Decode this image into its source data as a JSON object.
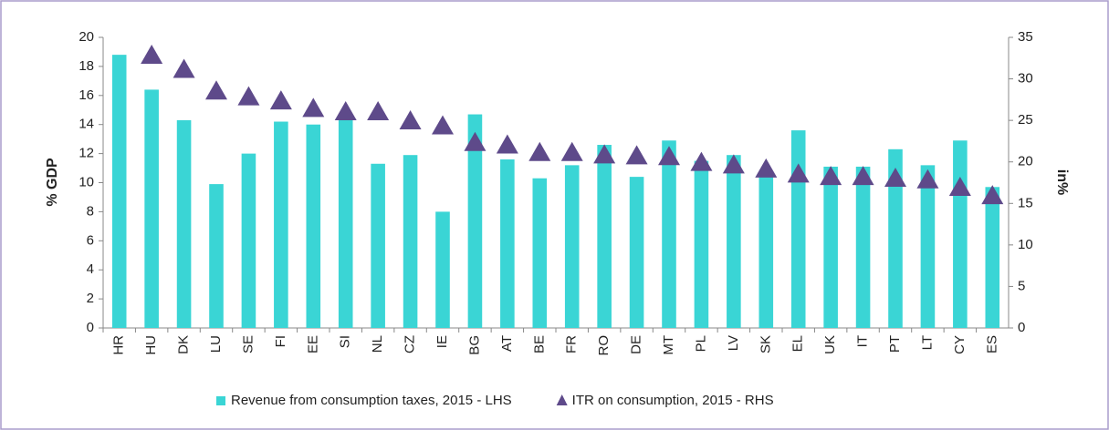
{
  "chart_data": {
    "type": "bar",
    "categories": [
      "HR",
      "HU",
      "DK",
      "LU",
      "SE",
      "FI",
      "EE",
      "SI",
      "NL",
      "CZ",
      "IE",
      "BG",
      "AT",
      "BE",
      "FR",
      "RO",
      "DE",
      "MT",
      "PL",
      "LV",
      "SK",
      "EL",
      "UK",
      "IT",
      "PT",
      "LT",
      "CY",
      "ES"
    ],
    "series": [
      {
        "name": "Revenue from consumption taxes, 2015 - LHS",
        "color": "#3ad5d5",
        "type": "bar",
        "values": [
          18.8,
          16.4,
          14.3,
          9.9,
          12.0,
          14.2,
          14.0,
          14.3,
          11.3,
          11.9,
          8.0,
          14.7,
          11.6,
          10.3,
          11.2,
          12.6,
          10.4,
          12.9,
          11.5,
          11.9,
          10.8,
          13.6,
          11.1,
          11.1,
          12.3,
          11.2,
          12.9,
          9.7
        ]
      },
      {
        "name": "ITR on consumption, 2015 - RHS",
        "color": "#5e4a8a",
        "type": "scatter",
        "marker": "triangle",
        "axis": "y2",
        "values": [
          null,
          32.8,
          31.1,
          28.5,
          27.8,
          27.3,
          26.4,
          26.0,
          26.0,
          24.9,
          24.3,
          22.3,
          22.0,
          21.1,
          21.1,
          20.8,
          20.7,
          20.6,
          19.9,
          19.6,
          19.1,
          18.5,
          18.2,
          18.2,
          18.0,
          17.8,
          16.9,
          15.9
        ]
      }
    ],
    "ylabel": "% GDP",
    "y2label": "in%",
    "ylim": [
      0,
      20
    ],
    "yticks": [
      0,
      2,
      4,
      6,
      8,
      10,
      12,
      14,
      16,
      18,
      20
    ],
    "y2lim": [
      0,
      35
    ],
    "y2ticks": [
      0,
      5,
      10,
      15,
      20,
      25,
      30,
      35
    ],
    "legend": "bottom"
  }
}
